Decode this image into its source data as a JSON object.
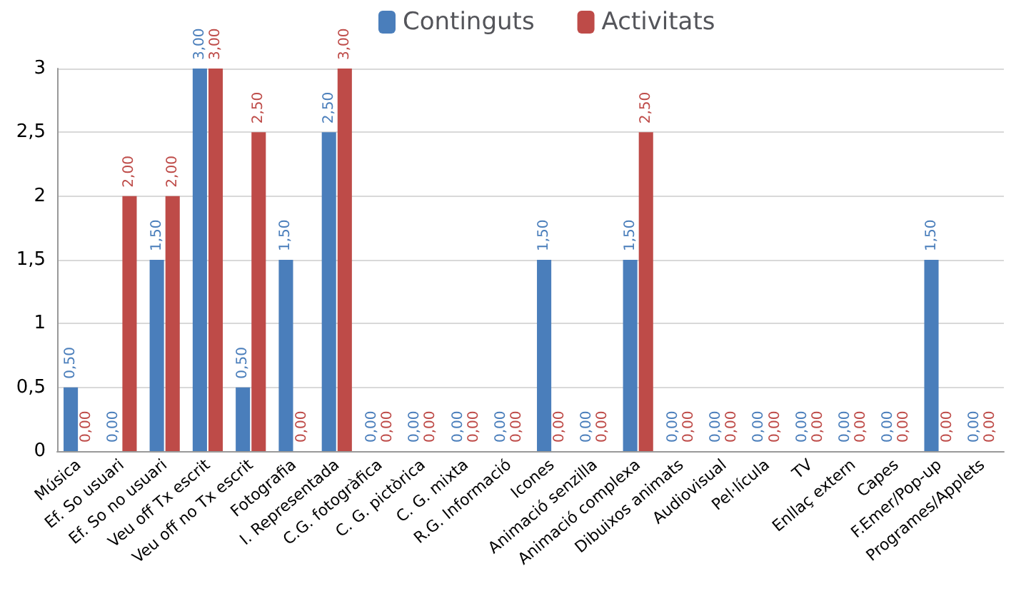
{
  "chart_data": {
    "type": "bar",
    "categories": [
      "Música",
      "Ef. So usuari",
      "Ef. So no usuari",
      "Veu off Tx escrit",
      "Veu off no Tx escrit",
      "Fotografia",
      "I. Representada",
      "C.G. fotogràfica",
      "C. G. pictòrica",
      "C. G. mixta",
      "R.G. Informació",
      "Icones",
      "Animació senzilla",
      "Animació complexa",
      "Dibuixos animats",
      "Audiovisual",
      "Pel·lícula",
      "TV",
      "Enllaç extern",
      "Capes",
      "F.Emer/Pop-up",
      "Programes/Applets"
    ],
    "series": [
      {
        "name": "Continguts",
        "color": "#4a7ebb",
        "values": [
          0.5,
          0,
          1.5,
          3,
          0.5,
          1.5,
          2.5,
          0,
          0,
          0,
          0,
          1.5,
          0,
          1.5,
          0,
          0,
          0,
          0,
          0,
          0,
          1.5,
          0
        ],
        "value_labels": [
          "0,50",
          "0,00",
          "1,50",
          "3,00",
          "0,50",
          "1,50",
          "2,50",
          "0,00",
          "0,00",
          "0,00",
          "0,00",
          "1,50",
          "0,00",
          "1,50",
          "0,00",
          "0,00",
          "0,00",
          "0,00",
          "0,00",
          "0,00",
          "1,50",
          "0,00"
        ]
      },
      {
        "name": "Activitats",
        "color": "#be4b48",
        "values": [
          0,
          2,
          2,
          3,
          2.5,
          0,
          3,
          0,
          0,
          0,
          0,
          0,
          0,
          2.5,
          0,
          0,
          0,
          0,
          0,
          0,
          0,
          0
        ],
        "value_labels": [
          "0,00",
          "2,00",
          "2,00",
          "3,00",
          "2,50",
          "0,00",
          "3,00",
          "0,00",
          "0,00",
          "0,00",
          "0,00",
          "0,00",
          "0,00",
          "2,50",
          "0,00",
          "0,00",
          "0,00",
          "0,00",
          "0,00",
          "0,00",
          "0,00",
          "0,00"
        ]
      }
    ],
    "ylim": [
      0,
      3
    ],
    "yticks": [
      {
        "value": 0,
        "label": "0"
      },
      {
        "value": 0.5,
        "label": "0,5"
      },
      {
        "value": 1,
        "label": "1"
      },
      {
        "value": 1.5,
        "label": "1,5"
      },
      {
        "value": 2,
        "label": "2"
      },
      {
        "value": 2.5,
        "label": "2,5"
      },
      {
        "value": 3,
        "label": "3"
      }
    ],
    "grid": "y",
    "legend": "top"
  }
}
